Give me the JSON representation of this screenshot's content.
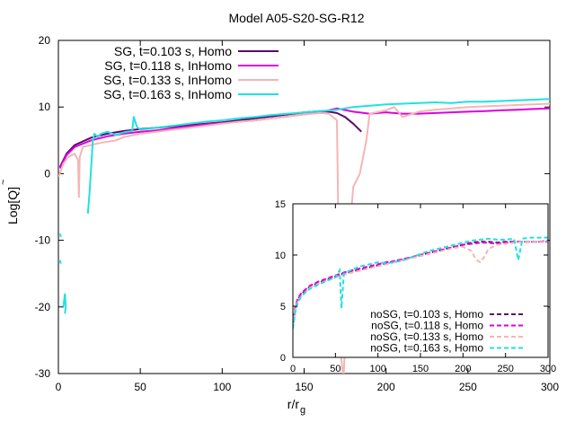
{
  "chart_data": {
    "type": "line",
    "title": "Model A05-S20-SG-R12",
    "xlabel": "r/r",
    "xlabel_sub": "g",
    "ylabel": "Log[Q]",
    "xlim": [
      0,
      300
    ],
    "ylim": [
      -30,
      20
    ],
    "xticks": [
      "0",
      "50",
      "100",
      "150",
      "200",
      "250",
      "300"
    ],
    "yticks": [
      "-30",
      "-20",
      "-10",
      "0",
      "10",
      "20"
    ],
    "series": [
      {
        "name": "SG, t=0.103 s, Homo",
        "color": "#5a0a6e",
        "style": "solid",
        "x": [
          1,
          5,
          10,
          20,
          30,
          40,
          50,
          60,
          70,
          80,
          90,
          100,
          110,
          120,
          130,
          140,
          150,
          160,
          165,
          170,
          175,
          180,
          185
        ],
        "y": [
          1,
          3,
          4.3,
          5.4,
          6.0,
          6.4,
          6.7,
          6.9,
          7.1,
          7.3,
          7.5,
          7.7,
          8.0,
          8.3,
          8.6,
          8.9,
          9.2,
          9.4,
          9.3,
          9.1,
          8.5,
          7.5,
          6.3
        ]
      },
      {
        "name": "SG, t=0.118 s, InHomo",
        "color": "#dd00dd",
        "style": "solid",
        "x": [
          1,
          5,
          10,
          20,
          30,
          40,
          50,
          60,
          70,
          80,
          90,
          100,
          110,
          120,
          130,
          140,
          150,
          160,
          170,
          180,
          190,
          200,
          210,
          220,
          230,
          240,
          250,
          260,
          270,
          280,
          290,
          300
        ],
        "y": [
          0.8,
          2.8,
          4.0,
          5.0,
          5.6,
          6.0,
          6.3,
          6.5,
          6.8,
          7.1,
          7.4,
          7.6,
          7.8,
          8.0,
          8.3,
          8.6,
          8.9,
          9.2,
          9.8,
          9.3,
          9.0,
          9.2,
          9.0,
          9.0,
          9.1,
          9.2,
          9.3,
          9.4,
          9.5,
          9.6,
          9.7,
          9.8
        ]
      },
      {
        "name": "SG, t=0.133 s, InHomo",
        "color": "#f5b5b5",
        "style": "solid",
        "x": [
          0,
          3,
          6,
          10,
          12,
          12.5,
          13,
          15,
          20,
          25,
          30,
          35,
          40,
          50,
          60,
          70,
          80,
          90,
          100,
          110,
          120,
          130,
          140,
          150,
          160,
          165,
          170,
          172,
          174,
          176,
          178,
          180,
          184,
          188,
          190,
          200,
          205,
          210,
          220,
          230,
          240,
          250,
          260,
          270,
          280,
          290,
          300
        ],
        "y": [
          -0.5,
          1.5,
          2.5,
          3.0,
          2.0,
          -3.5,
          2.5,
          4.0,
          4.3,
          4.6,
          4.8,
          5.0,
          5.5,
          6.0,
          6.3,
          6.6,
          6.9,
          7.2,
          7.5,
          7.8,
          8.0,
          8.3,
          8.6,
          8.9,
          9.1,
          9.0,
          8.0,
          -26,
          -31,
          -20,
          -8,
          -2,
          0,
          5,
          9,
          9.5,
          10,
          8.5,
          9.3,
          9.6,
          9.8,
          10.0,
          10.1,
          10.2,
          10.3,
          10.4,
          10.5
        ]
      },
      {
        "name": "SG, t=0.163 s, InHomo",
        "color": "#22e0e0",
        "style": "solid",
        "x": [
          18,
          19,
          20,
          21,
          22,
          24,
          26,
          30,
          35,
          40,
          45,
          46,
          48,
          50,
          60,
          70,
          80,
          90,
          100,
          110,
          120,
          130,
          140,
          150,
          160,
          170,
          180,
          190,
          200,
          210,
          220,
          230,
          240,
          250,
          260,
          270,
          280,
          290,
          300
        ],
        "y": [
          -6,
          -3,
          1,
          5,
          6,
          5.5,
          6.0,
          6.3,
          5.8,
          6.2,
          6.4,
          8.5,
          7.0,
          6.6,
          6.9,
          7.2,
          7.5,
          7.8,
          8.0,
          8.3,
          8.5,
          8.8,
          9.0,
          9.2,
          9.4,
          9.6,
          10.0,
          10.2,
          10.4,
          10.5,
          10.6,
          10.7,
          10.6,
          10.8,
          10.8,
          10.9,
          11.0,
          11.1,
          11.2
        ]
      }
    ],
    "inset": {
      "xlim": [
        0,
        300
      ],
      "ylim": [
        0,
        15
      ],
      "xticks": [
        "0",
        "50",
        "100",
        "150",
        "200",
        "250",
        "300"
      ],
      "yticks": [
        "0",
        "5",
        "10",
        "15"
      ],
      "series": [
        {
          "name": "noSG, t=0.103 s, Homo",
          "color": "#5a0a6e",
          "style": "dashed",
          "x": [
            0,
            3,
            6,
            10,
            20,
            30,
            40,
            50,
            60,
            70,
            80,
            90,
            100,
            110,
            120,
            130,
            140,
            150,
            160,
            170,
            180,
            190,
            200,
            210,
            220,
            230,
            240,
            250,
            260,
            270,
            280,
            290,
            300
          ],
          "y": [
            3.0,
            4.8,
            5.6,
            6.2,
            6.9,
            7.3,
            7.6,
            7.9,
            8.2,
            8.4,
            8.6,
            8.8,
            9.0,
            9.2,
            9.4,
            9.6,
            9.8,
            10.0,
            10.2,
            10.4,
            10.6,
            10.8,
            11.0,
            11.2,
            11.3,
            11.3,
            11.2,
            11.3,
            11.3,
            11.3,
            11.3,
            11.3,
            11.3
          ]
        },
        {
          "name": "noSG, t=0.118 s, Homo",
          "color": "#dd00dd",
          "style": "dashed",
          "x": [
            0,
            3,
            6,
            10,
            20,
            30,
            40,
            50,
            60,
            70,
            80,
            90,
            100,
            110,
            120,
            130,
            140,
            150,
            160,
            170,
            180,
            190,
            200,
            210,
            220,
            230,
            240,
            250,
            260,
            270,
            280,
            290,
            300
          ],
          "y": [
            3.2,
            5.0,
            5.8,
            6.3,
            7.0,
            7.4,
            7.7,
            8.0,
            8.3,
            8.5,
            8.7,
            8.9,
            9.1,
            9.3,
            9.4,
            9.6,
            9.8,
            10.0,
            10.2,
            10.4,
            10.6,
            10.8,
            11.0,
            11.1,
            11.2,
            11.2,
            11.1,
            11.2,
            11.3,
            11.3,
            11.3,
            11.3,
            11.4
          ]
        },
        {
          "name": "noSG, t=0.133 s, Homo",
          "color": "#f5b5b5",
          "style": "dashed",
          "x": [
            0,
            3,
            6,
            10,
            20,
            30,
            40,
            50,
            60,
            70,
            80,
            90,
            100,
            110,
            120,
            130,
            140,
            150,
            160,
            170,
            180,
            190,
            200,
            210,
            215,
            220,
            225,
            230,
            240,
            250,
            260,
            270,
            280,
            290,
            300
          ],
          "y": [
            3.0,
            4.7,
            5.5,
            6.0,
            6.8,
            7.2,
            7.5,
            7.8,
            8.1,
            8.3,
            8.5,
            8.7,
            8.9,
            9.1,
            9.3,
            9.5,
            9.7,
            9.9,
            10.1,
            10.3,
            10.5,
            10.7,
            10.8,
            10.4,
            9.6,
            9.3,
            9.8,
            10.6,
            11.0,
            11.1,
            11.2,
            11.3,
            11.3,
            11.3,
            11.3
          ]
        },
        {
          "name": "noSG, t=0.163 s, Homo",
          "color": "#22e0e0",
          "style": "dashed",
          "x": [
            0,
            3,
            6,
            10,
            20,
            30,
            40,
            50,
            55,
            57,
            60,
            70,
            80,
            90,
            100,
            110,
            120,
            130,
            140,
            150,
            160,
            170,
            180,
            190,
            200,
            210,
            220,
            230,
            240,
            250,
            260,
            265,
            270,
            280,
            290,
            300
          ],
          "y": [
            2.8,
            4.5,
            5.4,
            6.0,
            6.7,
            7.1,
            7.5,
            7.8,
            8.5,
            4.8,
            8.2,
            8.6,
            8.9,
            9.1,
            9.3,
            9.2,
            9.3,
            9.5,
            9.8,
            10.1,
            10.4,
            10.6,
            10.8,
            11.0,
            11.2,
            11.4,
            11.5,
            11.6,
            11.5,
            11.5,
            11.6,
            9.5,
            11.6,
            11.7,
            11.7,
            11.7
          ]
        }
      ]
    }
  }
}
